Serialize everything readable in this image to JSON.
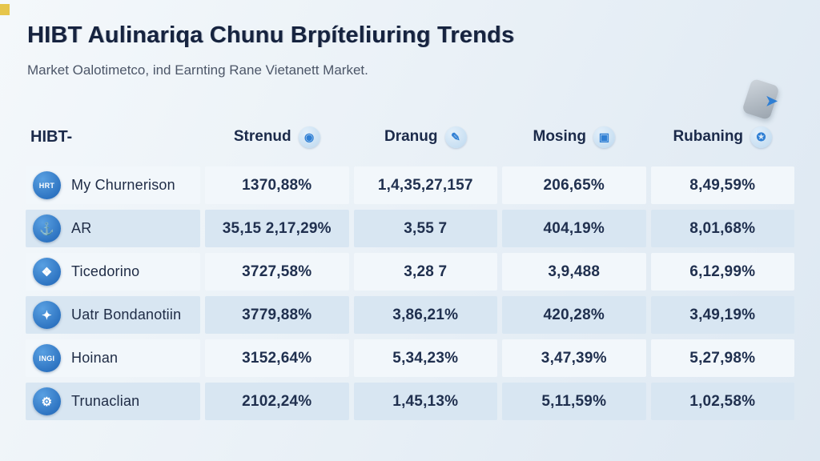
{
  "page": {
    "title": "HIBT Aulinariqa Chunu Brpíteliuring Trends",
    "subtitle": "Market Oalotimetco, ind Earnting Rane Vietanett Market."
  },
  "table": {
    "columns": [
      {
        "label": "HIBT-"
      },
      {
        "label": "Strenud",
        "icon_glyph": "◉",
        "icon_name": "globe-scatter-icon"
      },
      {
        "label": "Dranug",
        "icon_glyph": "✎",
        "icon_name": "pen-icon"
      },
      {
        "label": "Mosing",
        "icon_glyph": "▣",
        "icon_name": "monitor-icon"
      },
      {
        "label": "Rubaning",
        "icon_glyph": "✪",
        "icon_name": "badge-gear-icon"
      }
    ],
    "rows": [
      {
        "icon_glyph": "HRT",
        "name": "My Churnerison",
        "values": [
          "1370,88%",
          "1,4,35,27,157",
          "206,65%",
          "8,49,59%"
        ]
      },
      {
        "icon_glyph": "⚓",
        "name": "AR",
        "values": [
          "35,15 2,17,29%",
          "3,55 7",
          "404,19%",
          "8,01,68%"
        ]
      },
      {
        "icon_glyph": "❖",
        "name": "Ticedorino",
        "values": [
          "3727,58%",
          "3,28 7",
          "3,9,488",
          "6,12,99%"
        ]
      },
      {
        "icon_glyph": "✦",
        "name": "Uatr Bondanotiin",
        "values": [
          "3779,88%",
          "3,86,21%",
          "420,28%",
          "3,49,19%"
        ]
      },
      {
        "icon_glyph": "INGI",
        "name": "Hoinan",
        "values": [
          "3152,64%",
          "5,34,23%",
          "3,47,39%",
          "5,27,98%"
        ]
      },
      {
        "icon_glyph": "⚙",
        "name": "Trunaclian",
        "values": [
          "2102,24%",
          "1,45,13%",
          "5,11,59%",
          "1,02,58%"
        ]
      }
    ]
  },
  "chart_data": {
    "type": "table",
    "title": "HIBT Aulinariqa Chunu Brpíteliuring Trends",
    "subtitle": "Market Oalotimetco, ind Earnting Rane Vietanett Market.",
    "columns": [
      "HIBT-",
      "Strenud",
      "Dranug",
      "Mosing",
      "Rubaning"
    ],
    "rows": [
      [
        "My Churnerison",
        "1370,88%",
        "1,4,35,27,157",
        "206,65%",
        "8,49,59%"
      ],
      [
        "AR",
        "35,15 2,17,29%",
        "3,55 7",
        "404,19%",
        "8,01,68%"
      ],
      [
        "Ticedorino",
        "3727,58%",
        "3,28 7",
        "3,9,488",
        "6,12,99%"
      ],
      [
        "Uatr Bondanotiin",
        "3779,88%",
        "3,86,21%",
        "420,28%",
        "3,49,19%"
      ],
      [
        "Hoinan",
        "3152,64%",
        "5,34,23%",
        "3,47,39%",
        "5,27,98%"
      ],
      [
        "Trunaclian",
        "2102,24%",
        "1,45,13%",
        "5,11,59%",
        "1,02,58%"
      ]
    ]
  },
  "colors": {
    "accent_blue": "#2f7fd4",
    "title_navy": "#16233f",
    "row_light": "#f2f7fb",
    "row_shaded": "#d8e6f2",
    "corner_yellow": "#e6c54b"
  }
}
